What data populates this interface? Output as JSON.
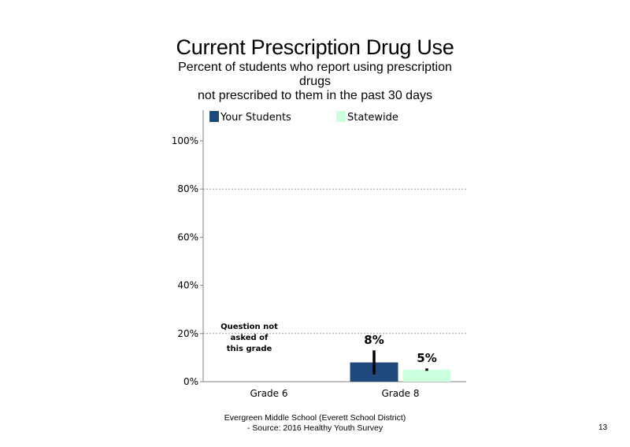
{
  "slide": {
    "title": "Current Prescription Drug Use",
    "subtitle_lines": [
      "Percent of students  who report using prescription",
      "drugs",
      "not prescribed to them in the past 30 days"
    ],
    "footer_lines": [
      "Evergreen Middle School (Everett School District)",
      "- Source: 2016 Healthy  Youth Survey"
    ],
    "page_number": "13"
  },
  "chart_data": {
    "type": "bar",
    "title": "",
    "xlabel": "",
    "ylabel": "",
    "categories": [
      "Grade 6",
      "Grade 8"
    ],
    "series": [
      {
        "name": "Your Students",
        "color": "#1f497d",
        "values": [
          null,
          8
        ],
        "labels": [
          "",
          "8%"
        ],
        "error": [
          null,
          [
            3,
            13
          ]
        ]
      },
      {
        "name": "Statewide",
        "color": "#ccffdd",
        "values": [
          null,
          5
        ],
        "labels": [
          "",
          "5%"
        ],
        "error": [
          null,
          [
            4.5,
            5.5
          ]
        ]
      }
    ],
    "ylim": [
      0,
      100
    ],
    "yticks": [
      0,
      20,
      40,
      60,
      80,
      100
    ],
    "ytick_labels": [
      "0%",
      "20%",
      "40%",
      "60%",
      "80%",
      "100%"
    ],
    "gridlines_at": [
      20,
      80
    ],
    "legend_position": "top",
    "annotations": [
      {
        "category": "Grade 6",
        "lines": [
          "Question not",
          "asked of",
          "this grade"
        ]
      }
    ]
  }
}
